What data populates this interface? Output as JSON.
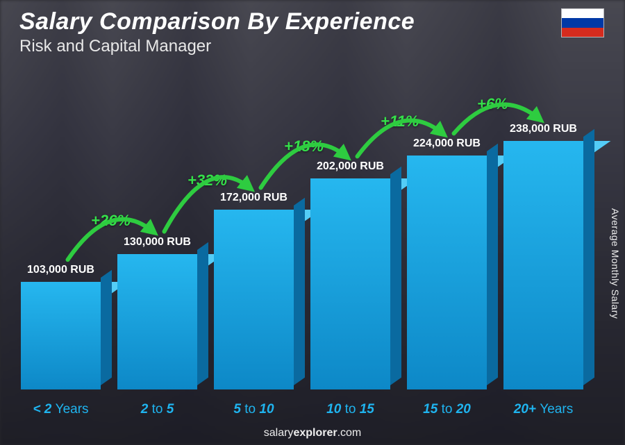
{
  "header": {
    "title": "Salary Comparison By Experience",
    "subtitle": "Risk and Capital Manager"
  },
  "flag": {
    "name": "russia-flag",
    "stripes": [
      "#ffffff",
      "#0039a6",
      "#d52b1e"
    ]
  },
  "side_label": "Average Monthly Salary",
  "footer": {
    "prefix": "salary",
    "suffix": "explorer",
    "domain": ".com"
  },
  "chart": {
    "type": "bar",
    "currency": "RUB",
    "value_max": 300000,
    "bar_colors": {
      "front_top": "#26b7ef",
      "front_bottom": "#0d88c7",
      "side": "#0a6aa0",
      "top": "#54cdf7"
    },
    "label_color": "#ffffff",
    "xlabel_color": "#1fb4ef",
    "arc_stroke": "#2ecc40",
    "arc_strokewidth": 6,
    "pct_color": "#35e04a",
    "background_overlay": "rgba(10,10,20,0.35)",
    "bars": [
      {
        "category_html": "< 2 <span class='thin'>Years</span>",
        "value": 103000,
        "label": "103,000 RUB"
      },
      {
        "category_html": "2 <span class='thin'>to</span> 5",
        "value": 130000,
        "label": "130,000 RUB"
      },
      {
        "category_html": "5 <span class='thin'>to</span> 10",
        "value": 172000,
        "label": "172,000 RUB"
      },
      {
        "category_html": "10 <span class='thin'>to</span> 15",
        "value": 202000,
        "label": "202,000 RUB"
      },
      {
        "category_html": "15 <span class='thin'>to</span> 20",
        "value": 224000,
        "label": "224,000 RUB"
      },
      {
        "category_html": "20+ <span class='thin'>Years</span>",
        "value": 238000,
        "label": "238,000 RUB"
      }
    ],
    "increases": [
      {
        "pct": "+26%"
      },
      {
        "pct": "+32%"
      },
      {
        "pct": "+18%"
      },
      {
        "pct": "+11%"
      },
      {
        "pct": "+6%"
      }
    ]
  }
}
